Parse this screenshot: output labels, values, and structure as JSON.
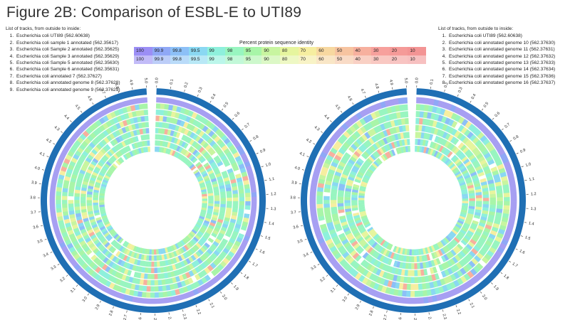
{
  "title": "Figure 2B: Comparison of ESBL-E to UTI89",
  "left_panel": {
    "tracks_header": "List of tracks, from outside to inside:",
    "tracks": [
      "Escherichia coli UTI89 (562.60638)",
      "Escherichia coli sample 1 annotated (562.35617)",
      "Escherichia coli Sample 2 annotated (562.35625)",
      "Escherichia coli Sample 3 annotated (562.35629)",
      "Escherichia coli Sample 5 annotated (562.35630)",
      "Escherichia coli Sample 6 annotated (562.35631)",
      "Escherichia coli annotated 7 (562.37627)",
      "Escherichia coli annotated genome 8 (562.37628)",
      "Escherichia coli annotated genome 9 (562.37629)"
    ]
  },
  "right_panel": {
    "tracks_header": "List of tracks, from outside to inside:",
    "tracks": [
      "Escherichia coli UTI89 (562.60638)",
      "Escherichia coli annotated genome 10 (562.37630)",
      "Escherichia coli annotated genome 11 (562.37631)",
      "Escherichia coli annotated genome 12 (562.37632)",
      "Escherichia coli annotated genome 13 (562.37633)",
      "Escherichia coli annotated genome 14 (562.37634)",
      "Escherichia coli annotated genome 15 (562.37636)",
      "Escherichia coli annotated genome 16 (562.37637)"
    ]
  },
  "legend": {
    "title": "Percent protein sequence identity",
    "row1": {
      "labels": [
        "100",
        "99.9",
        "99.8",
        "99.5",
        "99",
        "98",
        "95",
        "90",
        "80",
        "70",
        "60",
        "50",
        "40",
        "30",
        "20",
        "10"
      ],
      "colors": [
        "#9b8ef5",
        "#8fa8f6",
        "#8cc0f7",
        "#8ad8f2",
        "#8ef0dc",
        "#98f5c0",
        "#a8f5a8",
        "#c8f5a0",
        "#e6f59e",
        "#f6eea0",
        "#f7d8a0",
        "#f7c4a0",
        "#f7b09e",
        "#f7a09c",
        "#f59a98",
        "#f39494"
      ]
    },
    "row2": {
      "labels": [
        "100",
        "99.9",
        "99.8",
        "99.5",
        "99",
        "98",
        "95",
        "90",
        "80",
        "70",
        "60",
        "50",
        "40",
        "30",
        "20",
        "10"
      ],
      "colors": [
        "#c2bbf8",
        "#bccdf8",
        "#b9dbf9",
        "#b8e8f6",
        "#bbf6ea",
        "#c2f8d8",
        "#cdf8cc",
        "#dcf8c6",
        "#eef8c4",
        "#f8f3c6",
        "#f9e6c6",
        "#f9dbc6",
        "#f9d0c4",
        "#f9c8c2",
        "#f8c4c2",
        "#f7c0c0"
      ]
    }
  },
  "ring_ticks": [
    "0.0",
    "0.1",
    "0.2",
    "0.3",
    "0.4",
    "0.5",
    "0.6",
    "0.7",
    "0.8",
    "0.9",
    "1.0",
    "1.1",
    "1.2",
    "1.3",
    "1.4",
    "1.5",
    "1.6",
    "1.7",
    "1.8",
    "1.9",
    "2.0",
    "2.1",
    "2.2",
    "2.3",
    "2.4",
    "2.5",
    "2.6",
    "2.7",
    "2.8",
    "2.9",
    "3.0",
    "3.1",
    "3.2",
    "3.3",
    "3.4",
    "3.5",
    "3.6",
    "3.7",
    "3.8",
    "3.9",
    "4.0",
    "4.1",
    "4.2",
    "4.3",
    "4.4",
    "4.5",
    "4.6",
    "4.7",
    "4.8",
    "4.9",
    "5.0"
  ],
  "colors": {
    "backbone": "#1f6fb4",
    "reference_track": "#a79ff2",
    "background": "#ffffff"
  }
}
